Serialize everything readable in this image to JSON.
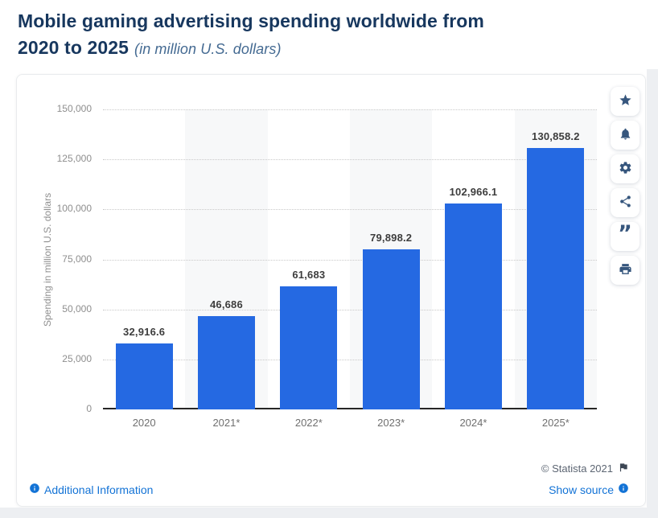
{
  "header": {
    "title_line1": "Mobile gaming advertising spending worldwide from",
    "title_line2": "2020 to 2025",
    "subtitle": "(in million U.S. dollars)"
  },
  "chart_data": {
    "type": "bar",
    "title": "Mobile gaming advertising spending worldwide from 2020 to 2025",
    "subtitle": "(in million U.S. dollars)",
    "categories": [
      "2020",
      "2021*",
      "2022*",
      "2023*",
      "2024*",
      "2025*"
    ],
    "values": [
      32916.6,
      46686,
      61683,
      79898.2,
      102966.1,
      130858.2
    ],
    "value_labels": [
      "32,916.6",
      "46,686",
      "61,683",
      "79,898.2",
      "102,966.1",
      "130,858.2"
    ],
    "xlabel": "",
    "ylabel": "Spending in million U.S. dollars",
    "ylim": [
      0,
      150000
    ],
    "ytick_interval": 25000,
    "ytick_labels": [
      "0",
      "25,000",
      "50,000",
      "75,000",
      "100,000",
      "125,000",
      "150,000"
    ],
    "grid": "horizontal dotted",
    "legend": "none",
    "bar_color": "#2569e2",
    "alt_column_stripe_color": "#f7f8f9"
  },
  "toolbar": {
    "buttons": [
      {
        "name": "favorite",
        "icon": "star-icon"
      },
      {
        "name": "alerts",
        "icon": "bell-icon"
      },
      {
        "name": "settings",
        "icon": "gear-icon"
      },
      {
        "name": "share",
        "icon": "share-icon"
      },
      {
        "name": "cite",
        "icon": "quote-icon"
      },
      {
        "name": "print",
        "icon": "printer-icon"
      }
    ]
  },
  "footer": {
    "copyright": "© Statista 2021",
    "additional_information": "Additional Information",
    "show_source": "Show source"
  }
}
